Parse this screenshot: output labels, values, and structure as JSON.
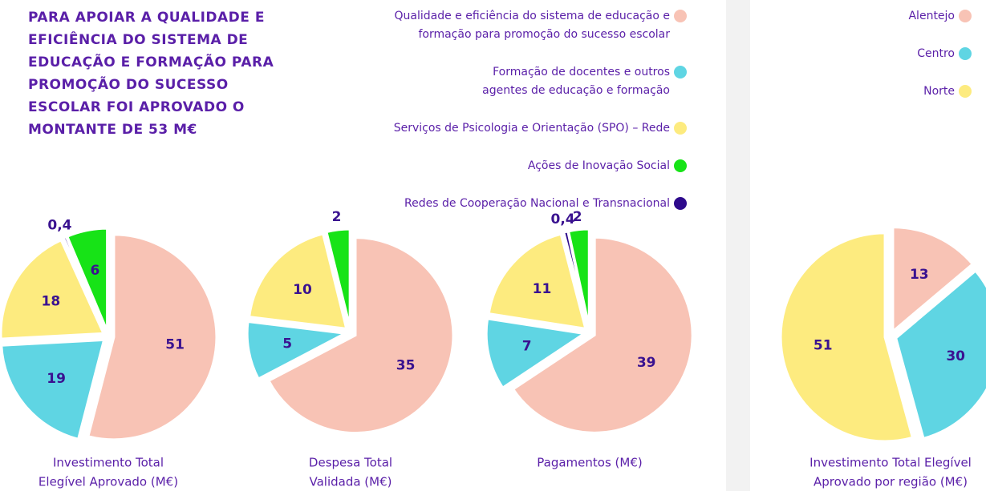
{
  "heading": {
    "lines": [
      "PARA APOIAR A QUALIDADE E",
      "EFICIÊNCIA DO SISTEMA DE",
      "EDUCAÇÃO E FORMAÇÃO PARA",
      "PROMOÇÃO DO SUCESSO",
      "ESCOLAR FOI APROVADO O",
      "MONTANTE DE 53 M€"
    ]
  },
  "legends": [
    {
      "items": [
        {
          "name": [
            "Qualidade e eficiência do sistema de educação e",
            "formação para promoção do sucesso escolar"
          ],
          "color": "#f8c3b5"
        },
        {
          "name": [
            "Formação de docentes e outros",
            "agentes de educação e formação"
          ],
          "color": "#5fd5e3"
        },
        {
          "name": [
            "Serviços de Psicologia e Orientação (SPO) – Rede"
          ],
          "color": "#fdeb7f"
        },
        {
          "name": [
            "Ações de Inovação Social"
          ],
          "color": "#17e317"
        },
        {
          "name": [
            "Redes de Cooperação Nacional e Transnacional"
          ],
          "color": "#2e0a8c"
        }
      ]
    },
    {
      "items": [
        {
          "name": [
            "Alentejo"
          ],
          "color": "#f8c3b5"
        },
        {
          "name": [
            "Centro"
          ],
          "color": "#5fd5e3"
        },
        {
          "name": [
            "Norte"
          ],
          "color": "#fdeb7f"
        }
      ]
    }
  ],
  "chart_data": [
    {
      "type": "pie",
      "title": [
        "Investimento Total",
        "Elegível Aprovado (M€)"
      ],
      "values": [
        51,
        19,
        18,
        6,
        0.4
      ],
      "value_labels": [
        "51",
        "19",
        "18",
        "6",
        "0,4"
      ]
    },
    {
      "type": "pie",
      "title": [
        "Despesa Total",
        "Validada (M€)"
      ],
      "values": [
        35,
        5,
        10,
        2,
        null
      ],
      "value_labels": [
        "35",
        "5",
        "10",
        "2",
        null
      ]
    },
    {
      "type": "pie",
      "title": [
        "Pagamentos (M€)"
      ],
      "values": [
        39,
        7,
        11,
        2,
        0.4
      ],
      "value_labels": [
        "39",
        "7",
        "11",
        "2",
        "0,4"
      ]
    },
    {
      "type": "pie",
      "title": [
        "Investimento Total Elegível",
        "Aprovado por região (M€)"
      ],
      "values": [
        13,
        30,
        51
      ],
      "value_labels": [
        "13",
        "30",
        "51"
      ]
    }
  ]
}
